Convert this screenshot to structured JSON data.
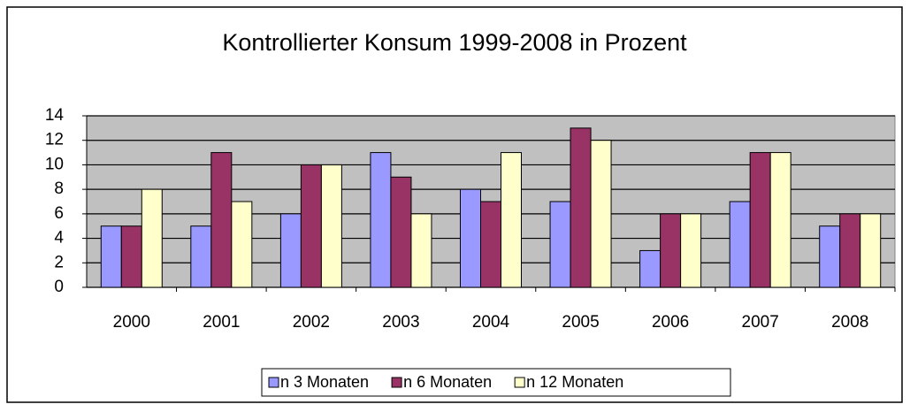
{
  "chart_data": {
    "type": "bar",
    "title": "Kontrollierter Konsum 1999-2008 in Prozent",
    "categories": [
      "2000",
      "2001",
      "2002",
      "2003",
      "2004",
      "2005",
      "2006",
      "2007",
      "2008"
    ],
    "series": [
      {
        "name": "n 3 Monaten",
        "color": "#9999ff",
        "values": [
          5,
          5,
          6,
          11,
          8,
          7,
          3,
          7,
          5
        ]
      },
      {
        "name": "n 6 Monaten",
        "color": "#993366",
        "values": [
          5,
          11,
          10,
          9,
          7,
          13,
          6,
          11,
          6
        ]
      },
      {
        "name": "n 12 Monaten",
        "color": "#ffffcc",
        "values": [
          8,
          7,
          10,
          6,
          11,
          12,
          6,
          11,
          6
        ]
      }
    ],
    "ylim": [
      0,
      14
    ],
    "yticks": [
      0,
      2,
      4,
      6,
      8,
      10,
      12,
      14
    ],
    "grid": true,
    "legend": "bottom"
  }
}
